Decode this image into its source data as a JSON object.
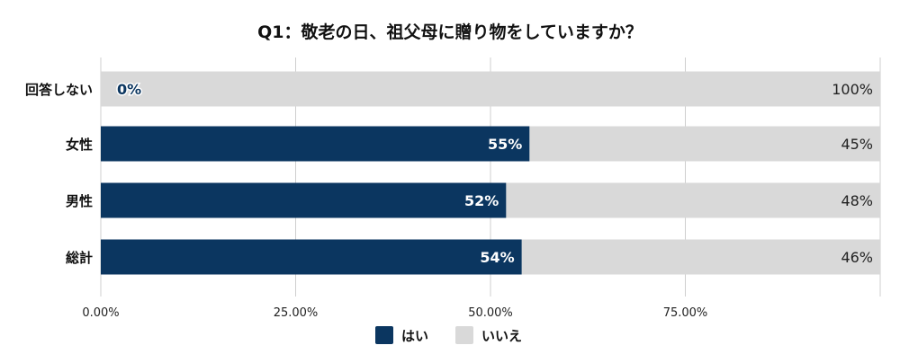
{
  "chart_data": {
    "type": "bar",
    "orientation": "horizontal",
    "stacked": true,
    "title": "Q1：敬老の日、祖父母に贈り物をしていますか？",
    "categories": [
      "回答しない",
      "女性",
      "男性",
      "総計"
    ],
    "series": [
      {
        "name": "はい",
        "values": [
          0,
          55,
          52,
          54
        ],
        "labels": [
          "0%",
          "55%",
          "52%",
          "54%"
        ],
        "color": "#0b3660"
      },
      {
        "name": "いいえ",
        "values": [
          100,
          45,
          48,
          46
        ],
        "labels": [
          "100%",
          "45%",
          "48%",
          "46%"
        ],
        "color": "#d9d9d9"
      }
    ],
    "x_ticks": [
      0,
      25,
      50,
      75
    ],
    "x_tick_labels": [
      "0.00%",
      "25.00%",
      "50.00%",
      "75.00%"
    ],
    "xlim": [
      0,
      100
    ],
    "grid": true,
    "legend_position": "bottom"
  }
}
